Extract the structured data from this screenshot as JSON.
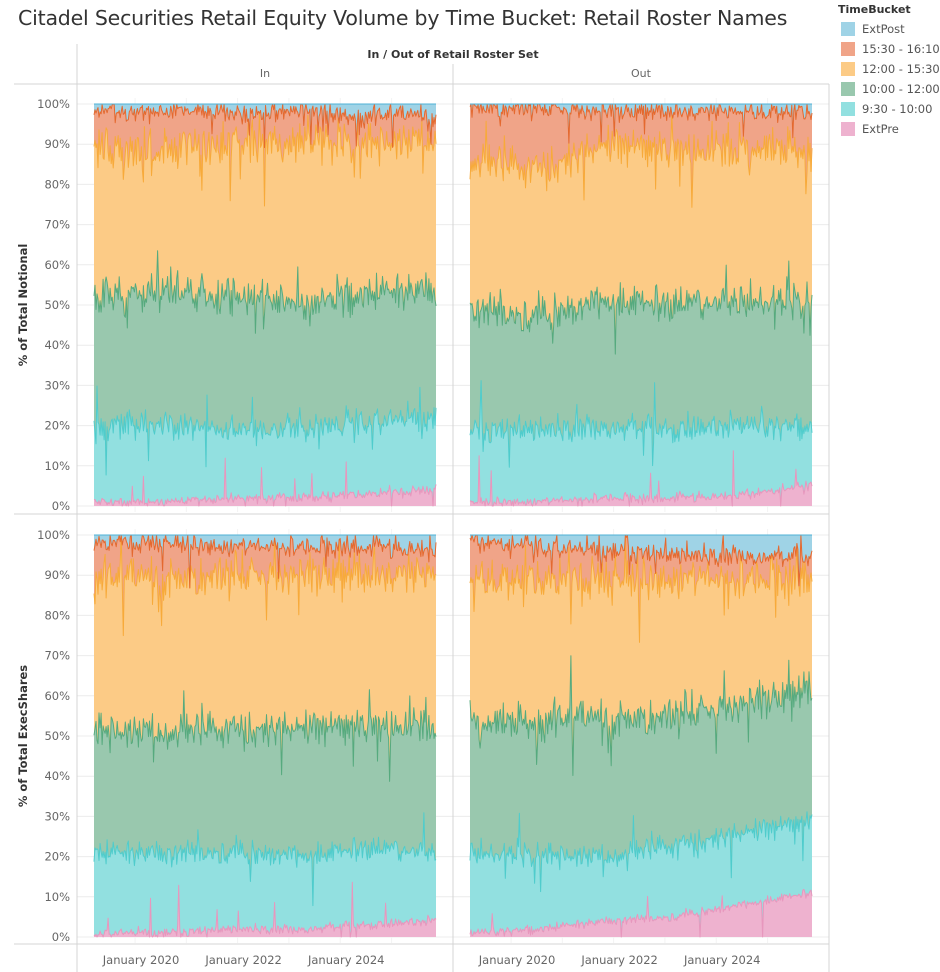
{
  "chart_data": {
    "type": "area",
    "stacked": true,
    "normalized": true,
    "title": "Citadel Securities Retail Equity Volume by Time Bucket: Retail Roster Names",
    "column_header": "In / Out of Retail Roster Set",
    "columns": [
      "In",
      "Out"
    ],
    "rows": [
      {
        "ylabel": "% of Total Notional",
        "measure": "notional"
      },
      {
        "ylabel": "% of Total ExecShares",
        "measure": "execshares"
      }
    ],
    "yticks": [
      "0%",
      "10%",
      "20%",
      "30%",
      "40%",
      "50%",
      "60%",
      "70%",
      "80%",
      "90%",
      "100%"
    ],
    "ylim": [
      0,
      100
    ],
    "xticks": [
      "January 2020",
      "January 2022",
      "January 2024"
    ],
    "xrange": [
      "2019-01",
      "2025-12"
    ],
    "grid": true,
    "legend": {
      "title": "TimeBucket",
      "position": "top-right",
      "items": [
        {
          "label": "ExtPost",
          "fill": "#9fd3e6",
          "line": "#4fb0d5"
        },
        {
          "label": "15:30 - 16:10",
          "fill": "#f0a488",
          "line": "#e4692f"
        },
        {
          "label": "12:00 - 15:30",
          "fill": "#fccb86",
          "line": "#f7aa3a"
        },
        {
          "label": "10:00 - 12:00",
          "fill": "#99c8ae",
          "line": "#56aa7e"
        },
        {
          "label": "9:30 - 10:00",
          "fill": "#92e0e0",
          "line": "#4fcccc"
        },
        {
          "label": "ExtPre",
          "fill": "#eeb2cf",
          "line": "#e797bd"
        }
      ]
    },
    "series_order_bottom_to_top": [
      "ExtPre",
      "9:30 - 10:00",
      "10:00 - 12:00",
      "12:00 - 15:30",
      "15:30 - 16:10",
      "ExtPost"
    ],
    "panels": [
      {
        "row": "notional",
        "column": "In",
        "approx_cumulative_top_pct": {
          "ExtPre": [
            1,
            1,
            2,
            2,
            3,
            4
          ],
          "9:30 - 10:00": [
            20,
            20,
            19,
            19,
            21,
            22
          ],
          "10:00 - 12:00": [
            52,
            53,
            52,
            51,
            53,
            54
          ],
          "12:00 - 15:30": [
            89,
            89,
            90,
            91,
            91,
            91
          ],
          "15:30 - 16:10": [
            98,
            98,
            98,
            98,
            97,
            97
          ],
          "ExtPost": [
            100,
            100,
            100,
            100,
            100,
            100
          ]
        }
      },
      {
        "row": "notional",
        "column": "Out",
        "approx_cumulative_top_pct": {
          "ExtPre": [
            1,
            1,
            2,
            2,
            3,
            5
          ],
          "9:30 - 10:00": [
            19,
            19,
            20,
            19,
            20,
            20
          ],
          "10:00 - 12:00": [
            49,
            47,
            51,
            50,
            51,
            52
          ],
          "12:00 - 15:30": [
            86,
            84,
            90,
            89,
            89,
            89
          ],
          "15:30 - 16:10": [
            99,
            99,
            98,
            98,
            98,
            98
          ],
          "ExtPost": [
            100,
            100,
            100,
            100,
            100,
            100
          ]
        }
      },
      {
        "row": "execshares",
        "column": "In",
        "approx_cumulative_top_pct": {
          "ExtPre": [
            1,
            1,
            2,
            2,
            3,
            4
          ],
          "9:30 - 10:00": [
            21,
            21,
            21,
            20,
            22,
            21
          ],
          "10:00 - 12:00": [
            52,
            51,
            52,
            52,
            53,
            53
          ],
          "12:00 - 15:30": [
            89,
            89,
            90,
            90,
            90,
            90
          ],
          "15:30 - 16:10": [
            98,
            98,
            97,
            97,
            97,
            97
          ],
          "ExtPost": [
            100,
            100,
            100,
            100,
            100,
            100
          ]
        }
      },
      {
        "row": "execshares",
        "column": "Out",
        "approx_cumulative_top_pct": {
          "ExtPre": [
            1,
            2,
            4,
            5,
            8,
            11
          ],
          "9:30 - 10:00": [
            21,
            21,
            20,
            23,
            26,
            29
          ],
          "10:00 - 12:00": [
            53,
            54,
            54,
            55,
            58,
            61
          ],
          "12:00 - 15:30": [
            89,
            89,
            89,
            89,
            89,
            90
          ],
          "15:30 - 16:10": [
            99,
            97,
            96,
            95,
            95,
            94
          ],
          "ExtPost": [
            100,
            100,
            100,
            100,
            100,
            100
          ]
        }
      }
    ]
  }
}
